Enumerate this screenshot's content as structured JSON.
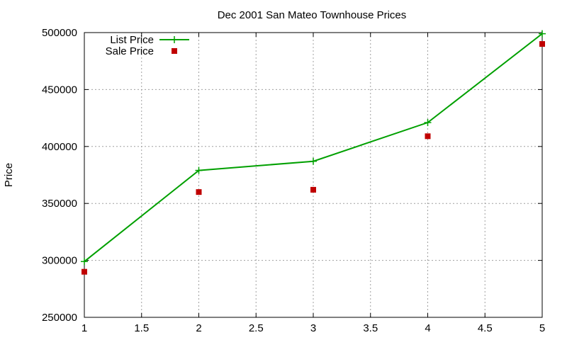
{
  "chart_data": {
    "type": "line",
    "title": "Dec 2001 San Mateo Townhouse Prices",
    "xlabel": "",
    "ylabel": "Price",
    "x": [
      1,
      2,
      3,
      4,
      5
    ],
    "xlim": [
      1,
      5
    ],
    "ylim": [
      250000,
      500000
    ],
    "x_ticks": [
      "1",
      "1.5",
      "2",
      "2.5",
      "3",
      "3.5",
      "4",
      "4.5",
      "5"
    ],
    "y_ticks": [
      "250000",
      "300000",
      "350000",
      "400000",
      "450000",
      "500000"
    ],
    "grid": true,
    "legend_position": "top-left",
    "series": [
      {
        "name": "List Price",
        "style": "lines+crosses",
        "color": "#00a000",
        "values": [
          299000,
          379000,
          387000,
          421000,
          499000
        ]
      },
      {
        "name": "Sale Price",
        "style": "squares",
        "color": "#c00000",
        "values": [
          290000,
          360000,
          362000,
          409000,
          490000
        ]
      }
    ]
  }
}
